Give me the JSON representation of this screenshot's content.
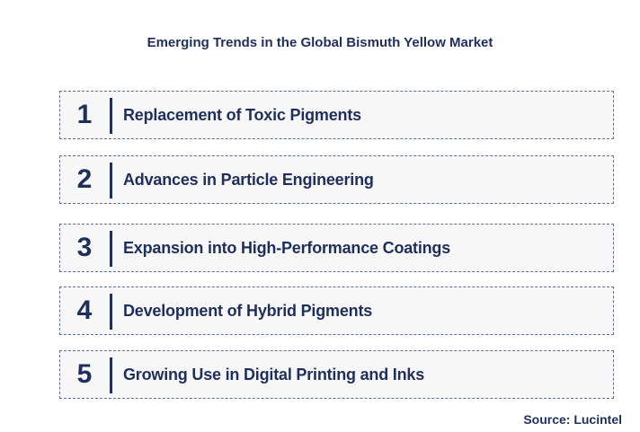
{
  "title": "Emerging Trends in the Global Bismuth Yellow Market",
  "trends": [
    {
      "number": "1",
      "label": "Replacement of Toxic Pigments"
    },
    {
      "number": "2",
      "label": "Advances in Particle Engineering"
    },
    {
      "number": "3",
      "label": "Expansion into High-Performance Coatings"
    },
    {
      "number": "4",
      "label": "Development of Hybrid Pigments"
    },
    {
      "number": "5",
      "label": "Growing Use in Digital Printing and Inks"
    }
  ],
  "source": "Source: Lucintel",
  "colors": {
    "text": "#1f2f5c",
    "border": "#5e6f94",
    "box_fill": "#f7f7f7"
  }
}
